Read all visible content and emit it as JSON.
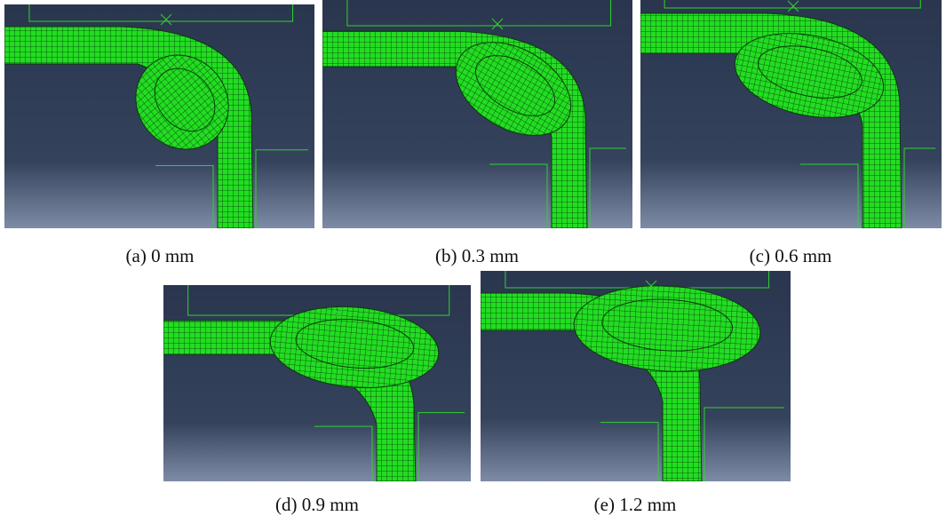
{
  "figures": [
    {
      "caption": "(a) 0 mm"
    },
    {
      "caption": "(b) 0.3 mm"
    },
    {
      "caption": "(c) 0.6 mm"
    },
    {
      "caption": "(d) 0.9 mm"
    },
    {
      "caption": "(e) 1.2 mm"
    }
  ]
}
